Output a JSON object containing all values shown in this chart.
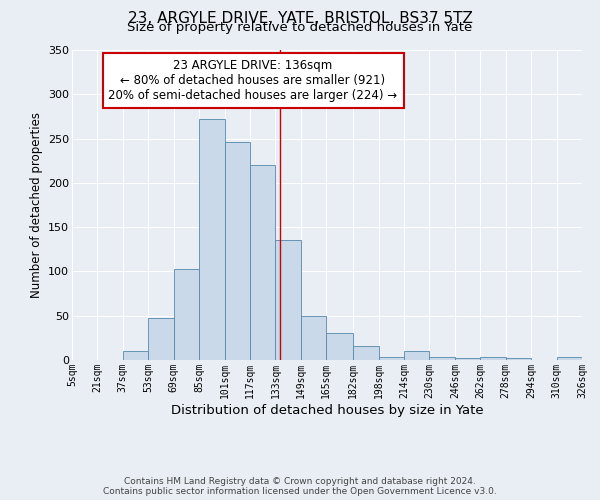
{
  "title": "23, ARGYLE DRIVE, YATE, BRISTOL, BS37 5TZ",
  "subtitle": "Size of property relative to detached houses in Yate",
  "xlabel": "Distribution of detached houses by size in Yate",
  "ylabel": "Number of detached properties",
  "bin_edges": [
    5,
    21,
    37,
    53,
    69,
    85,
    101,
    117,
    133,
    149,
    165,
    182,
    198,
    214,
    230,
    246,
    262,
    278,
    294,
    310,
    326
  ],
  "bar_heights": [
    0,
    0,
    10,
    47,
    103,
    272,
    246,
    220,
    135,
    50,
    30,
    16,
    3,
    10,
    3,
    2,
    3,
    2,
    0,
    3
  ],
  "bar_color": "#c9d9ea",
  "bar_edge_color": "#5588aa",
  "tick_labels": [
    "5sqm",
    "21sqm",
    "37sqm",
    "53sqm",
    "69sqm",
    "85sqm",
    "101sqm",
    "117sqm",
    "133sqm",
    "149sqm",
    "165sqm",
    "182sqm",
    "198sqm",
    "214sqm",
    "230sqm",
    "246sqm",
    "262sqm",
    "278sqm",
    "294sqm",
    "310sqm",
    "326sqm"
  ],
  "property_line_x": 136,
  "property_line_color": "#cc0000",
  "ylim": [
    0,
    350
  ],
  "yticks": [
    0,
    50,
    100,
    150,
    200,
    250,
    300,
    350
  ],
  "annotation_text": "23 ARGYLE DRIVE: 136sqm\n← 80% of detached houses are smaller (921)\n20% of semi-detached houses are larger (224) →",
  "annotation_box_facecolor": "#ffffff",
  "annotation_box_edgecolor": "#cc0000",
  "background_color": "#e8eef4",
  "grid_color": "#ffffff",
  "footer_text": "Contains HM Land Registry data © Crown copyright and database right 2024.\nContains public sector information licensed under the Open Government Licence v3.0.",
  "title_fontsize": 11,
  "subtitle_fontsize": 9.5,
  "xlabel_fontsize": 9.5,
  "ylabel_fontsize": 8.5,
  "tick_fontsize": 7,
  "annotation_fontsize": 8.5,
  "footer_fontsize": 6.5
}
